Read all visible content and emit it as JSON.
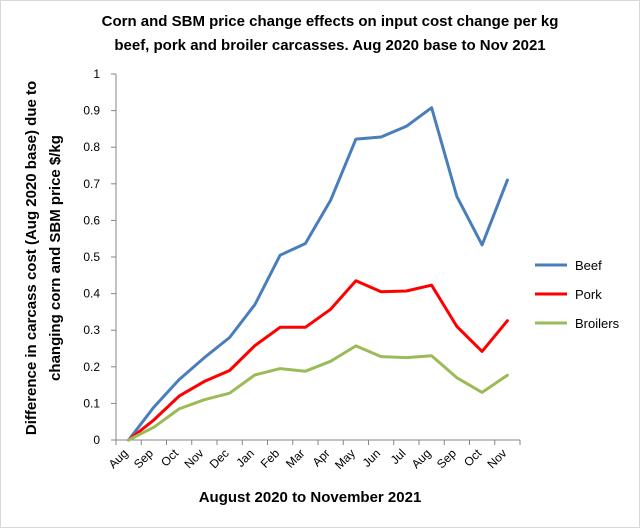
{
  "chart_data": {
    "type": "line",
    "title_lines": [
      "Corn and SBM price change effects on input cost change per kg",
      "beef, pork and broiler carcasses. Aug 2020 base to Nov 2021"
    ],
    "xlabel": "August 2020 to November 2021",
    "ylabel_lines": [
      "Difference in carcass cost (Aug 2020 base) due to",
      "changing corn and SBM price $/kg"
    ],
    "categories": [
      "Aug",
      "Sep",
      "Oct",
      "Nov",
      "Dec",
      "Jan",
      "Feb",
      "Mar",
      "Apr",
      "May",
      "Jun",
      "Jul",
      "Aug",
      "Sep",
      "Oct",
      "Nov"
    ],
    "ylim": [
      0,
      1
    ],
    "yticks": [
      "0",
      "0.1",
      "0.2",
      "0.3",
      "0.4",
      "0.5",
      "0.6",
      "0.7",
      "0.8",
      "0.9",
      "1"
    ],
    "grid": false,
    "legend_position": "right",
    "series": [
      {
        "name": "Beef",
        "color": "#4a7ebb",
        "values": [
          0,
          0.09,
          0.165,
          0.225,
          0.28,
          0.37,
          0.505,
          0.537,
          0.655,
          0.822,
          0.828,
          0.857,
          0.908,
          0.665,
          0.533,
          0.71
        ]
      },
      {
        "name": "Pork",
        "color": "#ff0000",
        "values": [
          0,
          0.055,
          0.12,
          0.16,
          0.19,
          0.258,
          0.308,
          0.308,
          0.357,
          0.435,
          0.405,
          0.407,
          0.423,
          0.31,
          0.242,
          0.326
        ]
      },
      {
        "name": "Broilers",
        "color": "#9bbb59",
        "values": [
          0,
          0.035,
          0.085,
          0.11,
          0.128,
          0.178,
          0.195,
          0.188,
          0.215,
          0.257,
          0.228,
          0.225,
          0.23,
          0.17,
          0.13,
          0.177
        ]
      }
    ]
  }
}
